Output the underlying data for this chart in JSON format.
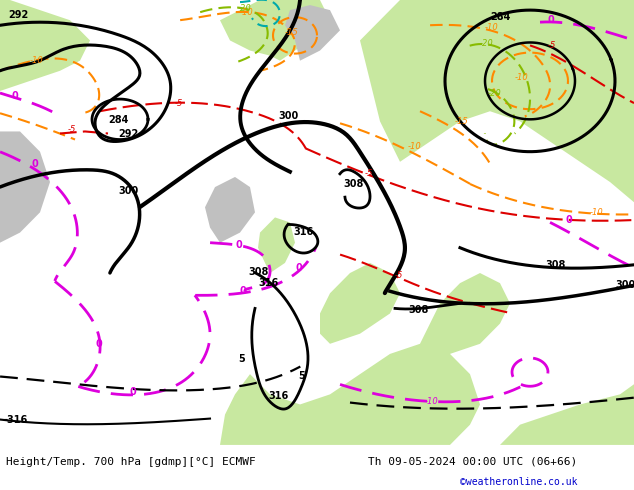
{
  "title_left": "Height/Temp. 700 hPa [gdmp][°C] ECMWF",
  "title_right": "Th 09-05-2024 00:00 UTC (06+66)",
  "watermark": "©weatheronline.co.uk",
  "bg_light_gray": "#d8d8d8",
  "bg_gray": "#c8c8c8",
  "green_light": "#c8e8a0",
  "green_mid": "#b8d880",
  "gray_land": "#b8b8b8",
  "white": "#ffffff",
  "figsize": [
    6.34,
    4.9
  ],
  "dpi": 100
}
